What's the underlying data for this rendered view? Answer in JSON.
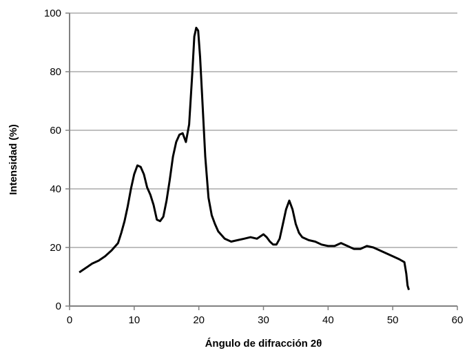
{
  "chart_data": {
    "type": "line",
    "title": "",
    "xlabel": "Ángulo de difracción 2θ",
    "ylabel": "Intensidad (%)",
    "xlim": [
      0,
      60
    ],
    "ylim": [
      0,
      100
    ],
    "x_ticks": [
      0,
      10,
      20,
      30,
      40,
      50,
      60
    ],
    "y_ticks": [
      0,
      20,
      40,
      60,
      80,
      100
    ],
    "grid": "horizontal",
    "legend": "none",
    "line_color": "#000000",
    "grid_color": "#bfbfbf",
    "series": [
      {
        "x": [
          1.5,
          2.5,
          3.5,
          4.5,
          5.5,
          6.5,
          7.5,
          8.0,
          8.5,
          9.0,
          9.5,
          10.0,
          10.5,
          11.0,
          11.5,
          12.0,
          12.5,
          13.0,
          13.5,
          14.0,
          14.5,
          15.0,
          15.5,
          16.0,
          16.5,
          17.0,
          17.5,
          18.0,
          18.5,
          19.0,
          19.3,
          19.6,
          19.9,
          20.2,
          20.5,
          21.0,
          21.5,
          22.0,
          22.5,
          23.0,
          24.0,
          25.0,
          26.0,
          27.0,
          28.0,
          29.0,
          30.0,
          30.5,
          31.0,
          31.5,
          32.0,
          32.5,
          33.0,
          33.5,
          34.0,
          34.5,
          35.0,
          35.5,
          36.0,
          37.0,
          38.0,
          39.0,
          40.0,
          41.0,
          42.0,
          43.0,
          44.0,
          45.0,
          46.0,
          47.0,
          48.0,
          49.0,
          50.0,
          51.0,
          51.8,
          52.1,
          52.3,
          52.5
        ],
        "y": [
          11.5,
          13,
          14.5,
          15.5,
          17,
          19,
          21.5,
          25,
          29,
          34,
          40,
          45,
          48,
          47.5,
          45,
          40.5,
          38,
          34.5,
          29.5,
          29,
          30.5,
          36,
          43,
          51,
          56,
          58.5,
          59,
          56,
          62,
          80,
          92,
          95,
          94,
          85,
          72,
          51,
          37,
          31,
          28,
          25.5,
          23,
          22,
          22.5,
          23,
          23.5,
          23,
          24.5,
          23.5,
          22,
          21,
          21,
          23,
          28,
          33,
          36,
          33,
          28,
          25,
          23.5,
          22.5,
          22,
          21,
          20.5,
          20.5,
          21.5,
          20.5,
          19.5,
          19.5,
          20.5,
          20,
          19,
          18,
          17,
          16,
          15,
          11,
          7,
          5.5
        ]
      }
    ]
  }
}
